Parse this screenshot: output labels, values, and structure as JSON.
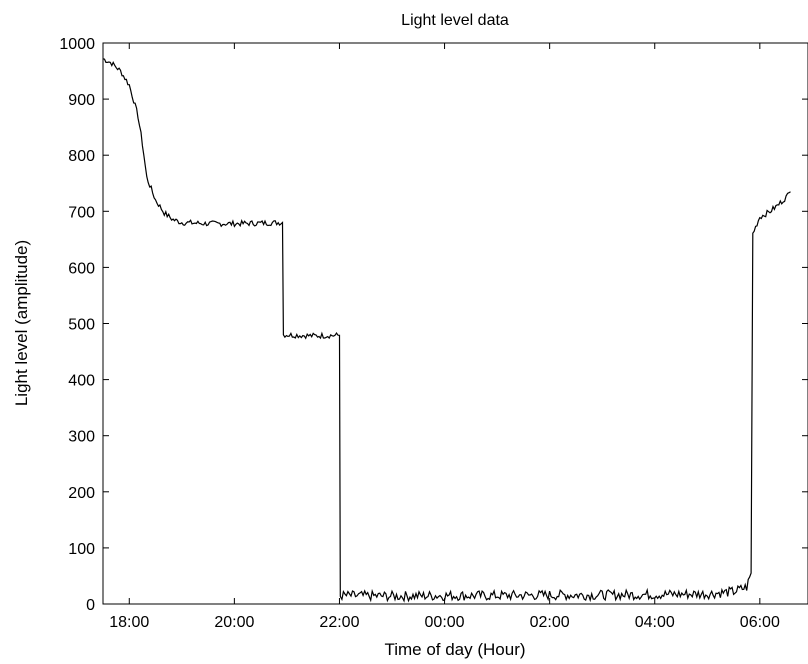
{
  "chart_data": {
    "type": "line",
    "title": "Light level data",
    "xlabel": "Time of day (Hour)",
    "ylabel": "Light level (amplitude)",
    "x_unit": "hours since midnight (ticks shown as HH:MM)",
    "xlim": [
      "17:30",
      "06:55"
    ],
    "ylim": [
      0,
      1000
    ],
    "grid": false,
    "legend": "none",
    "line_color": "#000000",
    "x_ticks": [
      {
        "label": "18:00",
        "value": "18:00"
      },
      {
        "label": "20:00",
        "value": "20:00"
      },
      {
        "label": "22:00",
        "value": "22:00"
      },
      {
        "label": "00:00",
        "value": "00:00"
      },
      {
        "label": "02:00",
        "value": "02:00"
      },
      {
        "label": "04:00",
        "value": "04:00"
      },
      {
        "label": "06:00",
        "value": "06:00"
      }
    ],
    "y_ticks": [
      0,
      100,
      200,
      300,
      400,
      500,
      600,
      700,
      800,
      900,
      1000
    ],
    "series": [
      {
        "points": [
          [
            "17:30",
            972
          ],
          [
            "17:40",
            964
          ],
          [
            "17:50",
            950
          ],
          [
            "18:00",
            925
          ],
          [
            "18:10",
            870
          ],
          [
            "18:15",
            820
          ],
          [
            "18:20",
            760
          ],
          [
            "18:30",
            720
          ],
          [
            "18:40",
            697
          ],
          [
            "18:50",
            685
          ],
          [
            "19:00",
            680
          ],
          [
            "19:30",
            678
          ],
          [
            "20:00",
            678
          ],
          [
            "20:30",
            679
          ],
          [
            "20:55",
            680
          ],
          [
            "20:56",
            480
          ],
          [
            "21:30",
            478
          ],
          [
            "22:00",
            479
          ],
          [
            "22:01",
            15
          ],
          [
            "23:00",
            14
          ],
          [
            "00:00",
            15
          ],
          [
            "01:00",
            15
          ],
          [
            "02:00",
            16
          ],
          [
            "03:00",
            16
          ],
          [
            "04:00",
            17
          ],
          [
            "05:00",
            18
          ],
          [
            "05:30",
            22
          ],
          [
            "05:45",
            30
          ],
          [
            "05:50",
            55
          ],
          [
            "05:52",
            660
          ],
          [
            "06:00",
            690
          ],
          [
            "06:10",
            698
          ],
          [
            "06:20",
            710
          ],
          [
            "06:30",
            725
          ],
          [
            "06:35",
            735
          ]
        ]
      }
    ]
  }
}
